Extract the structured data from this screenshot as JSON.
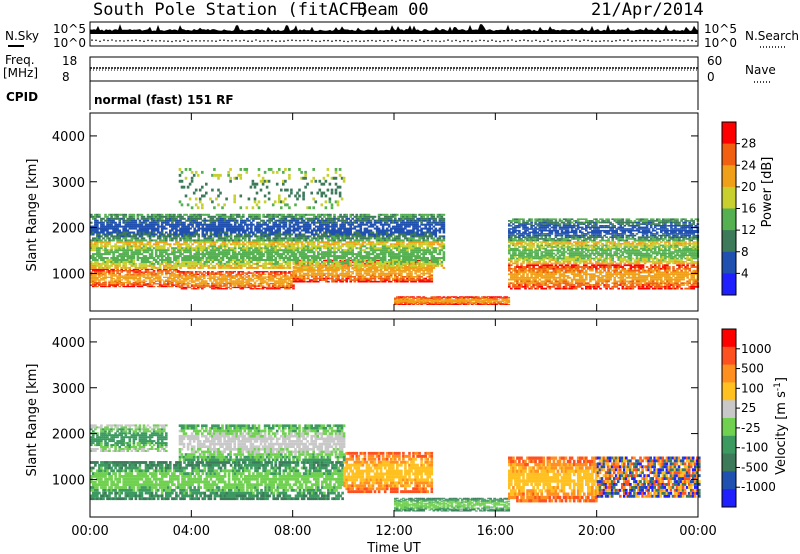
{
  "header": {
    "title": "South Pole Station (fitACF)",
    "beam": "Beam 00",
    "date": "21/Apr/2014"
  },
  "params": {
    "nsky_label": "N.Sky",
    "nsky_ticks": [
      "10^5",
      "10^0"
    ],
    "freq_label": "Freq.",
    "freq_unit": "[MHz]",
    "freq_ticks": [
      "18",
      "8"
    ],
    "cpid_label": "CPID",
    "cpid_text": "normal (fast) 151 RF",
    "nsearch_label": "N.Search",
    "nsearch_ticks": [
      "10^5",
      "10^0"
    ],
    "nave_label": "Nave",
    "nave_ticks": [
      "60",
      "0"
    ]
  },
  "colors": {
    "power_scale": [
      "#2020ff",
      "#2050b0",
      "#3c7a5a",
      "#54b050",
      "#c8d030",
      "#f0a018",
      "#f06010",
      "#ff0000"
    ],
    "velocity_scale": [
      "#ff0000",
      "#ff5020",
      "#ff9020",
      "#ffc020",
      "#c8c8c8",
      "#70d050",
      "#3c9a60",
      "#3c7a5a",
      "#2050b0",
      "#2020ff"
    ]
  },
  "chart_data": [
    {
      "type": "heatmap",
      "ylabel": "Slant Range [km]",
      "yticks": [
        "1000",
        "2000",
        "3000",
        "4000"
      ],
      "ylim": [
        180,
        4500
      ],
      "xticks": [
        "00:00",
        "04:00",
        "08:00",
        "12:00",
        "16:00",
        "20:00",
        "00:00"
      ],
      "xlim_hours": [
        0,
        24
      ],
      "colorbar": {
        "label": "Power [dB]",
        "ticks": [
          "28",
          "24",
          "20",
          "16",
          "12",
          "8",
          "4"
        ]
      },
      "bands": [
        {
          "t_start": 0,
          "t_end": 3.5,
          "r_min": 700,
          "r_max": 1100,
          "level": "strong"
        },
        {
          "t_start": 3.5,
          "t_end": 8,
          "r_min": 650,
          "r_max": 1050,
          "level": "strong"
        },
        {
          "t_start": 8,
          "t_end": 13.5,
          "r_min": 800,
          "r_max": 1300,
          "level": "strong"
        },
        {
          "t_start": 12,
          "t_end": 16.5,
          "r_min": 320,
          "r_max": 500,
          "level": "strong"
        },
        {
          "t_start": 16.5,
          "t_end": 24,
          "r_min": 650,
          "r_max": 1200,
          "level": "strong"
        },
        {
          "t_start": 0,
          "t_end": 14,
          "r_min": 1100,
          "r_max": 1700,
          "level": "moderate"
        },
        {
          "t_start": 16.5,
          "t_end": 24,
          "r_min": 1200,
          "r_max": 1700,
          "level": "moderate"
        },
        {
          "t_start": 0,
          "t_end": 14,
          "r_min": 1700,
          "r_max": 2300,
          "level": "weak"
        },
        {
          "t_start": 16.5,
          "t_end": 24,
          "r_min": 1700,
          "r_max": 2200,
          "level": "weak"
        },
        {
          "t_start": 3.5,
          "t_end": 10,
          "r_min": 2400,
          "r_max": 3300,
          "level": "sparse"
        }
      ]
    },
    {
      "type": "heatmap",
      "ylabel": "Slant Range [km]",
      "yticks": [
        "1000",
        "2000",
        "3000",
        "4000"
      ],
      "ylim": [
        180,
        4500
      ],
      "xticks": [
        "00:00",
        "04:00",
        "08:00",
        "12:00",
        "16:00",
        "20:00",
        "00:00"
      ],
      "xlabel": "Time UT",
      "xlim_hours": [
        0,
        24
      ],
      "colorbar": {
        "label": "Velocity [m s",
        "label_sup": "-1",
        "label_end": "]",
        "ticks": [
          "1000",
          "500",
          "100",
          "25",
          "-25",
          "-100",
          "-500",
          "-1000"
        ]
      },
      "bands": [
        {
          "t_start": 0,
          "t_end": 10,
          "r_min": 550,
          "r_max": 1400,
          "level": "toward"
        },
        {
          "t_start": 10,
          "t_end": 13.5,
          "r_min": 700,
          "r_max": 1600,
          "level": "away"
        },
        {
          "t_start": 12,
          "t_end": 16.5,
          "r_min": 300,
          "r_max": 600,
          "level": "toward"
        },
        {
          "t_start": 16.5,
          "t_end": 20,
          "r_min": 500,
          "r_max": 1500,
          "level": "away"
        },
        {
          "t_start": 20,
          "t_end": 24,
          "r_min": 600,
          "r_max": 1500,
          "level": "mixed"
        },
        {
          "t_start": 0,
          "t_end": 3,
          "r_min": 1600,
          "r_max": 2200,
          "level": "small"
        },
        {
          "t_start": 3.5,
          "t_end": 10,
          "r_min": 1400,
          "r_max": 2200,
          "level": "slow"
        }
      ]
    }
  ]
}
